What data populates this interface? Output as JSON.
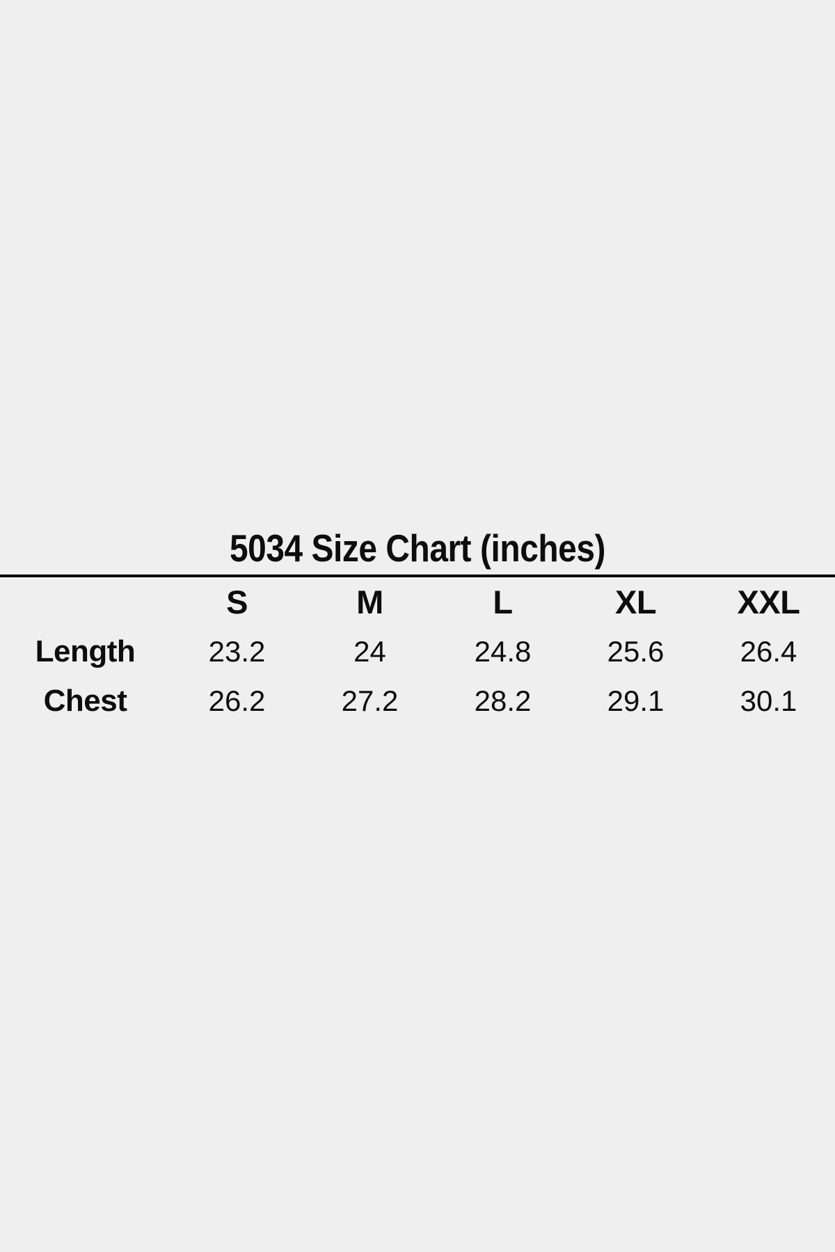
{
  "page": {
    "background": "#efefef",
    "text_color": "#0d0d0d",
    "divider_color": "#000000"
  },
  "chart_data": {
    "type": "table",
    "title": "5034 Size Chart (inches)",
    "columns": [
      "S",
      "M",
      "L",
      "XL",
      "XXL"
    ],
    "rows": [
      {
        "label": "Length",
        "values": [
          "23.2",
          "24",
          "24.8",
          "25.6",
          "26.4"
        ]
      },
      {
        "label": "Chest",
        "values": [
          "26.2",
          "27.2",
          "28.2",
          "29.1",
          "30.1"
        ]
      }
    ],
    "layout": {
      "title_position": "top-center",
      "divider_under_title": true,
      "grid": "off"
    }
  }
}
